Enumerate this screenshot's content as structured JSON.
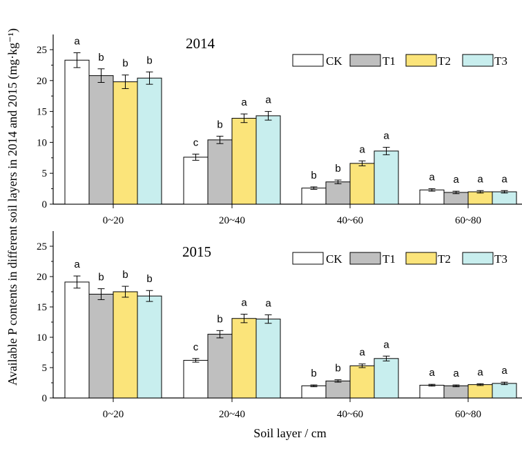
{
  "chart_data": {
    "type": "bar",
    "ylabel": "Available P contents in different soil layers in 2014 and 2015 (mg·kg⁻¹)",
    "xlabel": "Soil layer / cm",
    "categories": [
      "0~20",
      "20~40",
      "40~60",
      "60~80"
    ],
    "colors": {
      "CK": "#ffffff",
      "T1": "#bfbfbf",
      "T2": "#fbe47a",
      "T3": "#c8eeee"
    },
    "panels": [
      {
        "year": "2014",
        "ylim": [
          0,
          25
        ],
        "yticks": [
          0,
          5,
          10,
          15,
          20,
          25
        ],
        "series": [
          {
            "name": "CK",
            "values": [
              23.3,
              7.6,
              2.6,
              2.3
            ],
            "errors": [
              1.2,
              0.5,
              0.2,
              0.2
            ],
            "letters": [
              "a",
              "c",
              "b",
              "a"
            ]
          },
          {
            "name": "T1",
            "values": [
              20.8,
              10.4,
              3.6,
              1.9
            ],
            "errors": [
              1.1,
              0.6,
              0.3,
              0.2
            ],
            "letters": [
              "b",
              "b",
              "b",
              "a"
            ]
          },
          {
            "name": "T2",
            "values": [
              19.8,
              13.9,
              6.6,
              2.0
            ],
            "errors": [
              1.1,
              0.7,
              0.4,
              0.2
            ],
            "letters": [
              "b",
              "a",
              "a",
              "a"
            ]
          },
          {
            "name": "T3",
            "values": [
              20.4,
              14.3,
              8.6,
              2.0
            ],
            "errors": [
              1.0,
              0.7,
              0.6,
              0.2
            ],
            "letters": [
              "b",
              "a",
              "a",
              "a"
            ]
          }
        ]
      },
      {
        "year": "2015",
        "ylim": [
          0,
          25
        ],
        "yticks": [
          0,
          5,
          10,
          15,
          20,
          25
        ],
        "series": [
          {
            "name": "CK",
            "values": [
              19.1,
              6.2,
              2.0,
              2.1
            ],
            "errors": [
              1.0,
              0.3,
              0.15,
              0.15
            ],
            "letters": [
              "a",
              "c",
              "b",
              "a"
            ]
          },
          {
            "name": "T1",
            "values": [
              17.1,
              10.5,
              2.8,
              2.0
            ],
            "errors": [
              0.9,
              0.6,
              0.2,
              0.15
            ],
            "letters": [
              "b",
              "b",
              "b",
              "a"
            ]
          },
          {
            "name": "T2",
            "values": [
              17.5,
              13.1,
              5.3,
              2.2
            ],
            "errors": [
              0.9,
              0.7,
              0.3,
              0.15
            ],
            "letters": [
              "b",
              "a",
              "a",
              "a"
            ]
          },
          {
            "name": "T3",
            "values": [
              16.8,
              13.0,
              6.5,
              2.4
            ],
            "errors": [
              0.9,
              0.7,
              0.4,
              0.2
            ],
            "letters": [
              "b",
              "a",
              "a",
              "a"
            ]
          }
        ]
      }
    ]
  }
}
